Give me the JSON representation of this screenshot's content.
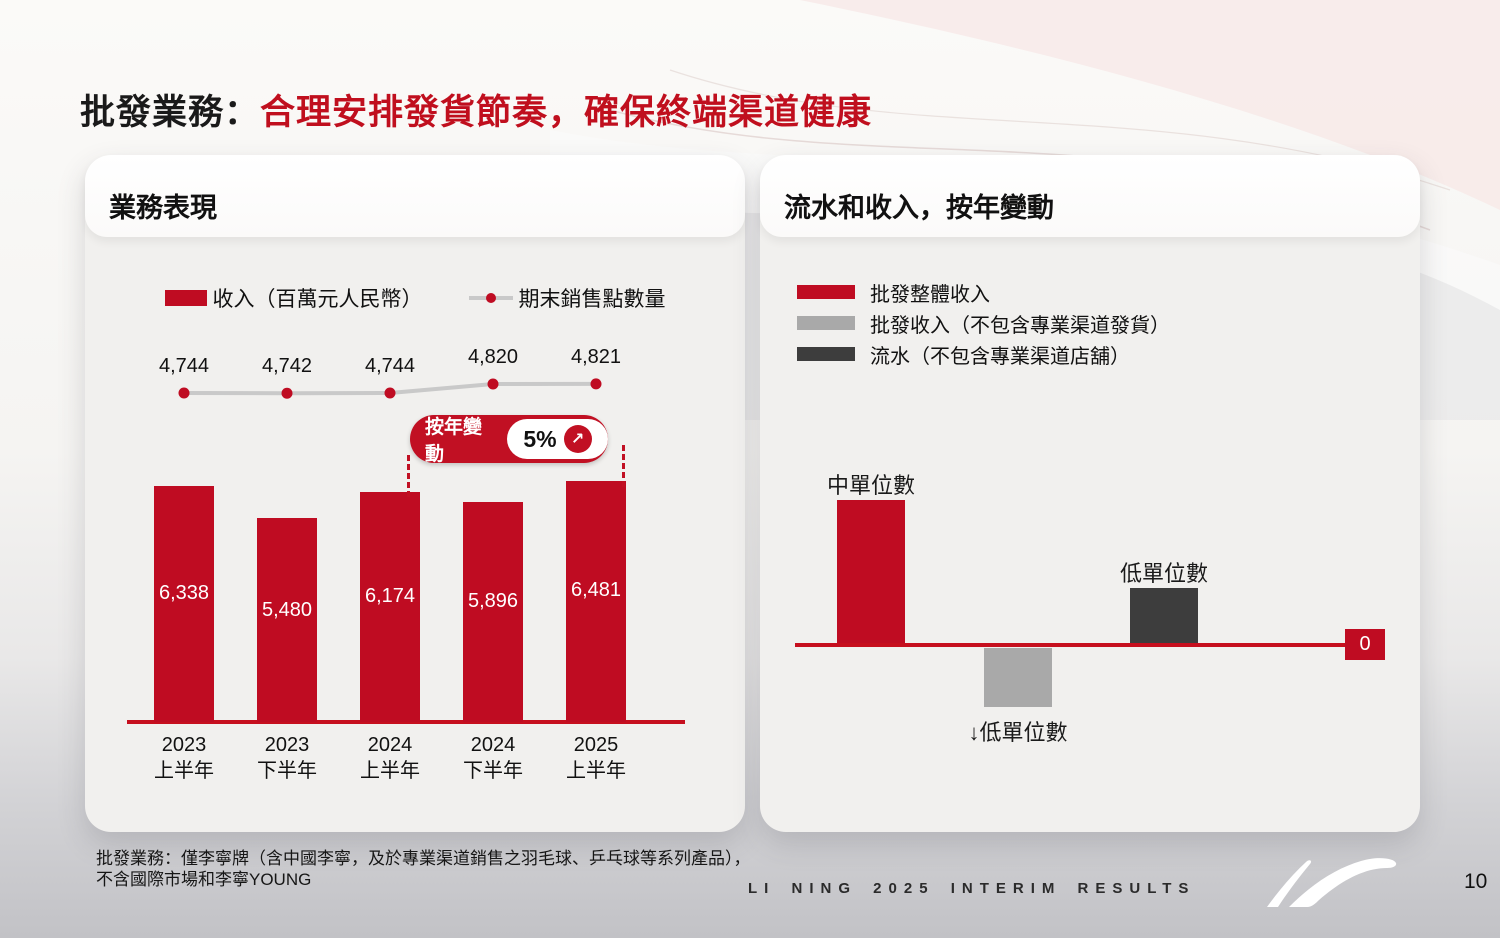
{
  "slide": {
    "title_prefix": "批發業務：",
    "title_highlight": "合理安排發貨節奏，確保終端渠道健康",
    "footnote_line1": "批發業務：僅李寧牌（含中國李寧，及於專業渠道銷售之羽毛球、乒乓球等系列產品），",
    "footnote_line2": "不含國際市場和李寧YOUNG",
    "event_caption": "LI NING 2025 INTERIM RESULTS",
    "page_number": "10"
  },
  "left_panel": {
    "header": "業務表現"
  },
  "right_panel": {
    "header": "流水和收入，按年變動"
  },
  "chart_data": [
    {
      "type": "bar",
      "subtype": "bar-line-combo",
      "title": "業務表現",
      "categories": [
        "2023\n上半年",
        "2023\n下半年",
        "2024\n上半年",
        "2024\n下半年",
        "2025\n上半年"
      ],
      "series": [
        {
          "name": "收入（百萬元人民幣）",
          "chart": "bar",
          "color": "#bf0c22",
          "values": [
            6338,
            5480,
            6174,
            5896,
            6481
          ]
        },
        {
          "name": "期末銷售點數量",
          "chart": "line",
          "color": "#c9c9c9",
          "marker_color": "#bf0c22",
          "values": [
            4744,
            4742,
            4744,
            4820,
            4821
          ]
        }
      ],
      "annotation": {
        "label": "按年變動",
        "value": "5%",
        "icon": "arrow-up-right",
        "connects": [
          "2024 上半年",
          "2025 上半年"
        ]
      },
      "bar_axis_range": [
        0,
        6500
      ],
      "value_labels": "inside-bars",
      "legend_position": "top",
      "grid": "off"
    },
    {
      "type": "bar",
      "title": "流水和收入，按年變動",
      "baseline_label": "0",
      "items": [
        {
          "legend": "批發整體收入",
          "color": "#bf0c22",
          "value_label": "中單位數",
          "value_estimate": 5,
          "label_position": "above"
        },
        {
          "legend": "批發收入（不包含專業渠道發貨）",
          "color": "#a9a9a9",
          "value_label": "↓低單位數",
          "value_estimate": -2,
          "label_position": "below"
        },
        {
          "legend": "流水（不包含專業渠道店舖）",
          "color": "#3d3d3d",
          "value_label": "低單位數",
          "value_estimate": 2,
          "label_position": "above"
        }
      ],
      "legend_position": "top-left",
      "value_axis": "qualitative YoY change",
      "grid": "off"
    }
  ],
  "colors": {
    "brand_red": "#bf0c22",
    "axis_red": "#c60f1e",
    "line_gray": "#c9c9c9",
    "bar_gray": "#a9a9a9",
    "bar_dark": "#3d3d3d",
    "title_red": "#c00f1e"
  }
}
